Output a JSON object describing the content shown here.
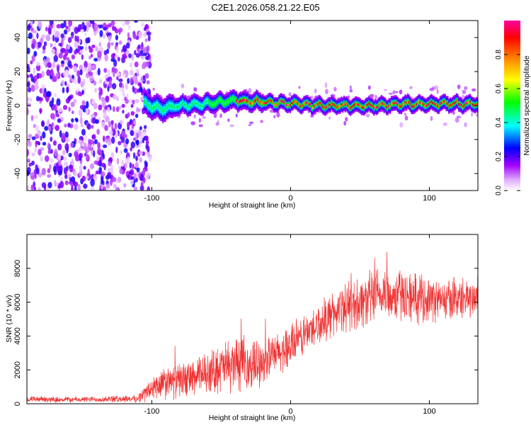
{
  "title": "C2E1.2026.058.21.22.E05",
  "chart_data": [
    {
      "type": "heatmap",
      "name": "spectrogram",
      "xlabel": "Height of straight line (km)",
      "ylabel": "Frequency (Hz)",
      "xlim": [
        -190,
        135
      ],
      "ylim": [
        -50,
        50
      ],
      "xticks": [
        -100,
        0,
        100
      ],
      "yticks": [
        -40,
        -20,
        0,
        20,
        40
      ],
      "colorbar": {
        "label": "Normalized spectral amplitude",
        "range": [
          0,
          1
        ],
        "ticks": [
          0,
          0.2,
          0.4,
          0.6,
          0.8
        ],
        "tick_labels": [
          "0.0",
          "0.2",
          "0.4",
          "0.6",
          "0.8"
        ],
        "colormap": [
          "#ffffff",
          "#a000ff",
          "#0000ff",
          "#00ffff",
          "#00ff00",
          "#ffff00",
          "#ff8000",
          "#ff0000",
          "#ff00a0"
        ]
      },
      "regions": [
        {
          "description": "broadband noise",
          "x_range": [
            -190,
            -105
          ],
          "freq_range": [
            -50,
            50
          ],
          "amplitude": [
            0.02,
            0.25
          ]
        },
        {
          "description": "onset",
          "x_range": [
            -105,
            -90
          ],
          "freq_range": [
            -8,
            10
          ],
          "amplitude": [
            0.1,
            0.45
          ]
        },
        {
          "description": "narrow-band signal centered near 0 Hz",
          "x_range": [
            -90,
            135
          ],
          "freq_range": [
            -6,
            6
          ],
          "amplitude": [
            0.3,
            1.0
          ]
        }
      ],
      "ridge_frequency_hz": [
        {
          "x": -105,
          "f": 1
        },
        {
          "x": -95,
          "f": -2
        },
        {
          "x": -80,
          "f": 0
        },
        {
          "x": -60,
          "f": 1
        },
        {
          "x": -40,
          "f": 3
        },
        {
          "x": -20,
          "f": 2
        },
        {
          "x": 0,
          "f": 1
        },
        {
          "x": 20,
          "f": 0
        },
        {
          "x": 40,
          "f": 0
        },
        {
          "x": 60,
          "f": 0
        },
        {
          "x": 80,
          "f": 1
        },
        {
          "x": 100,
          "f": 1
        },
        {
          "x": 120,
          "f": 1
        },
        {
          "x": 135,
          "f": 1
        }
      ]
    },
    {
      "type": "line",
      "name": "snr",
      "xlabel": "Height of straight line (km)",
      "ylabel": "SNR (10 * v/v)",
      "xlim": [
        -190,
        135
      ],
      "ylim": [
        0,
        10000
      ],
      "xticks": [
        -100,
        0,
        100
      ],
      "yticks": [
        0,
        2000,
        4000,
        6000,
        8000
      ],
      "color": "#ee3333",
      "envelope": {
        "x": [
          -190,
          -150,
          -110,
          -100,
          -90,
          -80,
          -70,
          -60,
          -50,
          -40,
          -30,
          -20,
          -10,
          0,
          10,
          20,
          30,
          40,
          50,
          60,
          70,
          80,
          90,
          100,
          110,
          120,
          135
        ],
        "mean": [
          250,
          250,
          300,
          900,
          1200,
          1400,
          1500,
          1800,
          2100,
          2400,
          2200,
          2600,
          2900,
          3400,
          4100,
          4700,
          5300,
          5700,
          6000,
          6300,
          6500,
          6400,
          6300,
          6200,
          6100,
          6200,
          6300
        ],
        "spread": [
          150,
          150,
          200,
          700,
          900,
          900,
          1000,
          1100,
          1300,
          1500,
          1400,
          1200,
          1100,
          1200,
          1100,
          1100,
          1200,
          1300,
          1400,
          1500,
          1500,
          1400,
          1300,
          1200,
          1100,
          1100,
          1000
        ]
      }
    }
  ]
}
